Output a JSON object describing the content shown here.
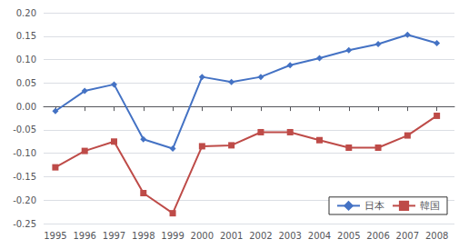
{
  "chart_data": {
    "type": "line",
    "x": [
      1995,
      1996,
      1997,
      1998,
      1999,
      2000,
      2001,
      2002,
      2003,
      2004,
      2005,
      2006,
      2007,
      2008
    ],
    "xlim": [
      1994.6,
      2008.6
    ],
    "xticks": [
      1995,
      1996,
      1997,
      1998,
      1999,
      2000,
      2001,
      2002,
      2003,
      2004,
      2005,
      2006,
      2007,
      2008
    ],
    "ylim": [
      -0.25,
      0.2
    ],
    "yticks": [
      -0.25,
      {
        "value": -0.2,
        "label": "-0.20"
      },
      -0.15,
      {
        "value": -0.1,
        "label": "-0.10"
      },
      -0.05,
      {
        "value": 0,
        "label": "0.00"
      },
      0.05,
      {
        "value": 0.1,
        "label": "0.10"
      },
      0.15,
      {
        "value": 0.2,
        "label": "0.20"
      }
    ],
    "grid": true,
    "legend": "lower right",
    "series": [
      {
        "name": "日本",
        "color": "#4472C4",
        "marker": "diamond",
        "line_style": "solid",
        "values": [
          -0.01,
          0.033,
          0.047,
          -0.07,
          -0.09,
          0.063,
          0.052,
          0.063,
          0.088,
          0.103,
          0.12,
          0.133,
          0.153,
          0.135
        ]
      },
      {
        "name": "韓国",
        "color": "#BE4B48",
        "marker": "square",
        "line_style": "solid",
        "values": [
          -0.13,
          -0.095,
          -0.075,
          -0.185,
          -0.228,
          -0.085,
          -0.083,
          -0.055,
          -0.055,
          -0.072,
          -0.088,
          -0.088,
          -0.062,
          -0.02
        ]
      }
    ]
  }
}
